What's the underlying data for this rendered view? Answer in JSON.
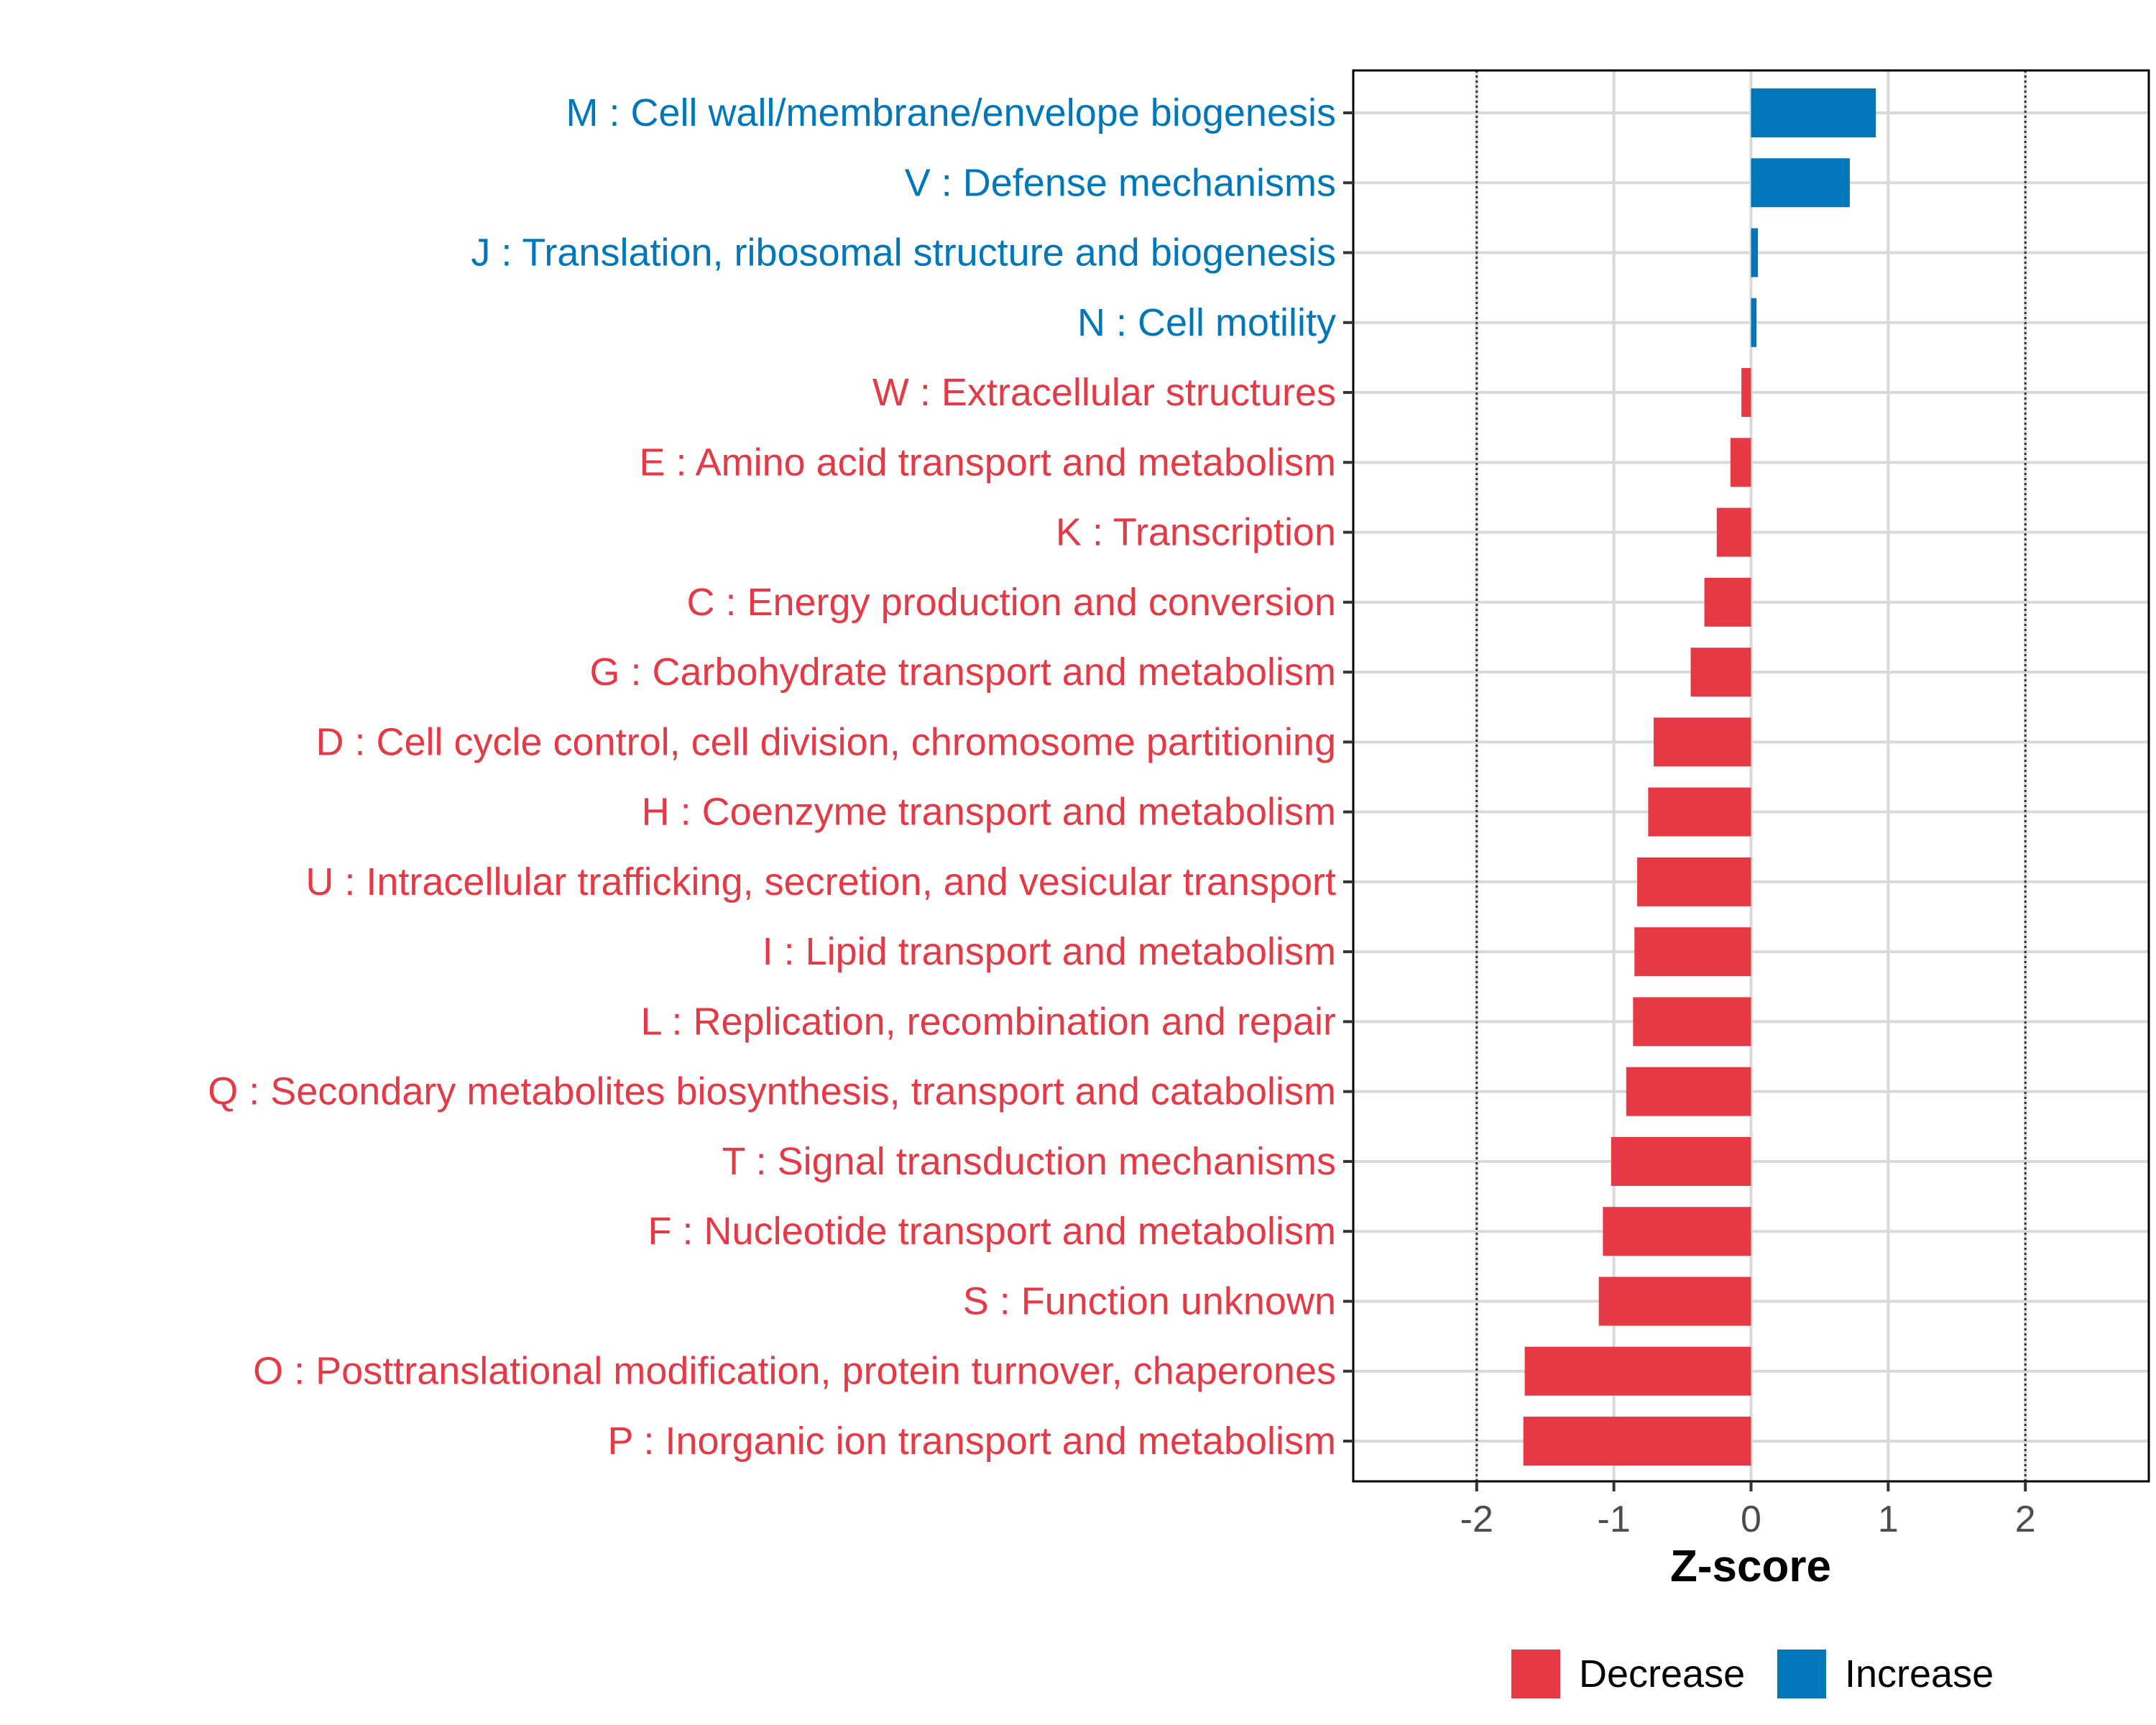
{
  "chart_data": {
    "type": "bar",
    "orientation": "horizontal",
    "title": "",
    "xlabel": "Z-score",
    "ylabel": "",
    "xlim": [
      -2.9,
      2.9
    ],
    "xticks": [
      -2,
      -1,
      0,
      1,
      2
    ],
    "xtick_labels": [
      "-2",
      "-1",
      "0",
      "1",
      "2"
    ],
    "reference_lines": [
      -2,
      2
    ],
    "grid": true,
    "legend_position": "bottom",
    "colors": {
      "decrease": "#e63946",
      "increase": "#0077bb"
    },
    "legend": [
      {
        "label": "Decrease",
        "key": "decrease"
      },
      {
        "label": "Increase",
        "key": "increase"
      }
    ],
    "categories": [
      "M : Cell wall/membrane/envelope biogenesis",
      "V : Defense mechanisms",
      "J : Translation, ribosomal structure and biogenesis",
      "N : Cell motility",
      "W : Extracellular structures",
      "E : Amino acid transport and metabolism",
      "K : Transcription",
      "C : Energy production and conversion",
      "G : Carbohydrate transport and metabolism",
      "D : Cell cycle control, cell division, chromosome partitioning",
      "H : Coenzyme transport and metabolism",
      "U : Intracellular trafficking, secretion, and vesicular transport",
      "I : Lipid transport and metabolism",
      "L : Replication, recombination and repair",
      "Q : Secondary metabolites biosynthesis, transport and catabolism",
      "T : Signal transduction mechanisms",
      "F : Nucleotide transport and metabolism",
      "S : Function unknown",
      "O : Posttranslational modification, protein turnover, chaperones",
      "P : Inorganic ion transport and metabolism"
    ],
    "values": [
      0.91,
      0.72,
      0.05,
      0.04,
      -0.07,
      -0.15,
      -0.25,
      -0.34,
      -0.44,
      -0.71,
      -0.75,
      -0.83,
      -0.85,
      -0.86,
      -0.91,
      -1.02,
      -1.08,
      -1.11,
      -1.65,
      -1.66
    ]
  }
}
